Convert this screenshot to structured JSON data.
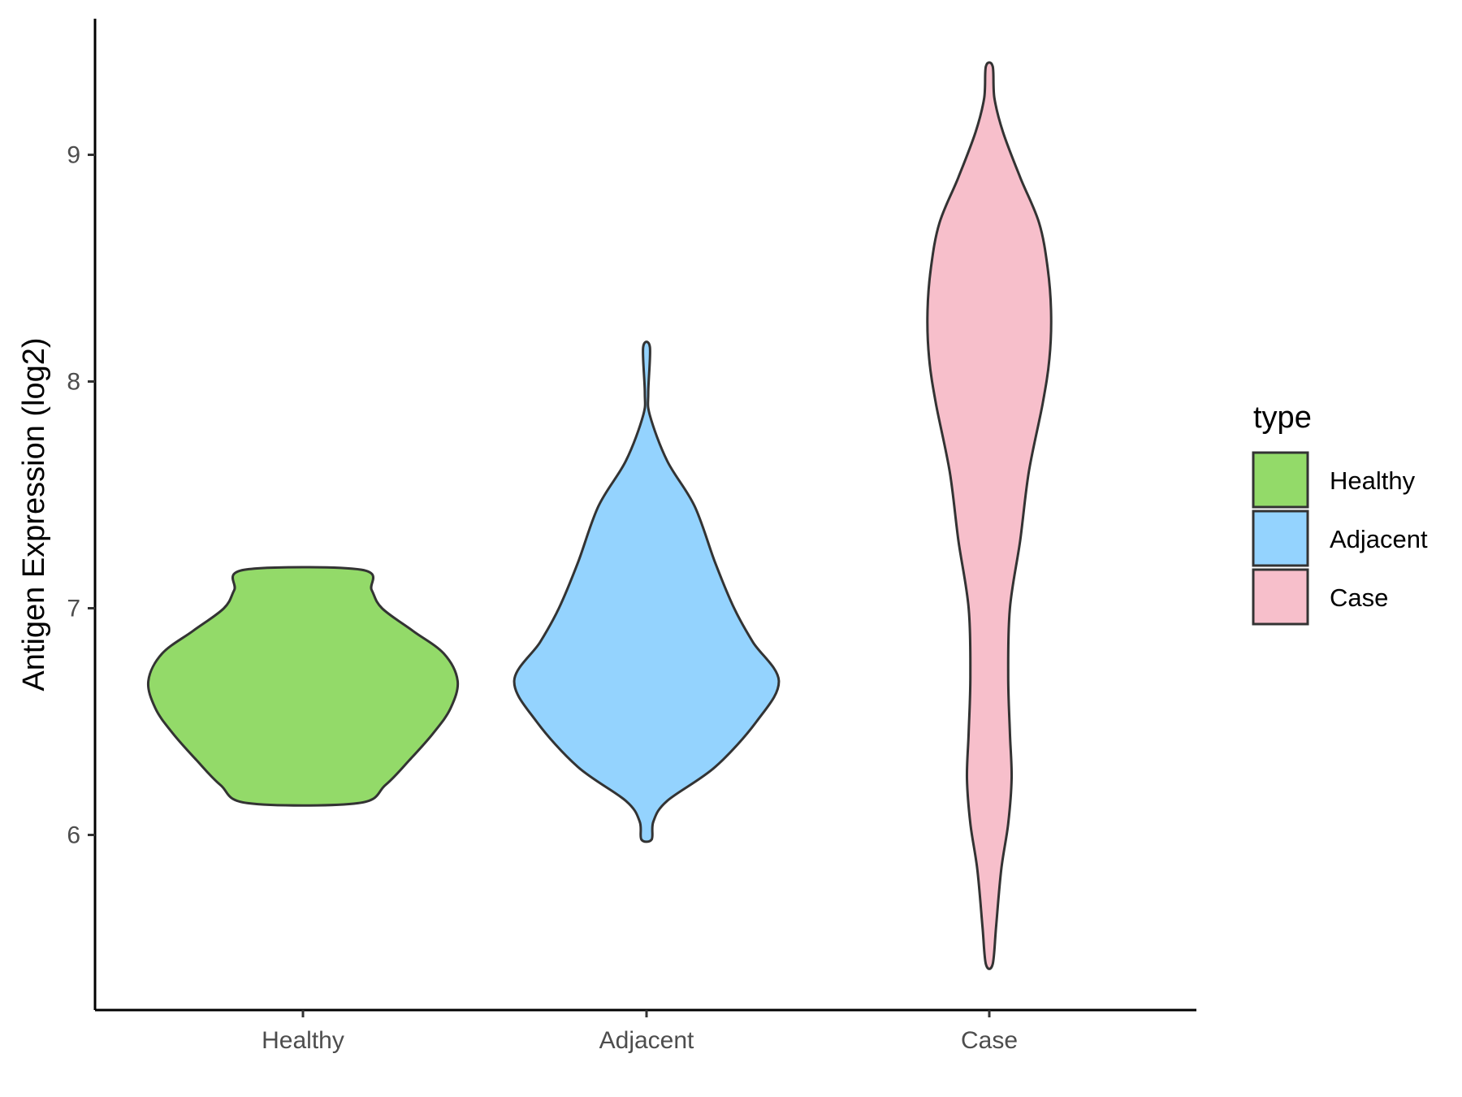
{
  "chart_data": {
    "type": "violin",
    "title": "",
    "xlabel": "",
    "ylabel": "Antigen Expression (log2)",
    "categories": [
      "Healthy",
      "Adjacent",
      "Case"
    ],
    "ylim": [
      5.25,
      9.6
    ],
    "yticks": [
      6,
      7,
      8,
      9
    ],
    "grid": false,
    "legend": {
      "title": "type",
      "position": "right",
      "entries": [
        "Healthy",
        "Adjacent",
        "Case"
      ]
    },
    "colors": {
      "Healthy": "#93DA69",
      "Adjacent": "#94D3FE",
      "Case": "#F7BFCB"
    },
    "series": [
      {
        "category": "Healthy",
        "min": 6.14,
        "max": 7.17,
        "profile": [
          {
            "y": 6.14,
            "hw": 0.16
          },
          {
            "y": 6.22,
            "hw": 0.24
          },
          {
            "y": 6.33,
            "hw": 0.31
          },
          {
            "y": 6.45,
            "hw": 0.38
          },
          {
            "y": 6.56,
            "hw": 0.43
          },
          {
            "y": 6.68,
            "hw": 0.45
          },
          {
            "y": 6.8,
            "hw": 0.41
          },
          {
            "y": 6.9,
            "hw": 0.32
          },
          {
            "y": 7.0,
            "hw": 0.23
          },
          {
            "y": 7.08,
            "hw": 0.2
          },
          {
            "y": 7.17,
            "hw": 0.17
          }
        ]
      },
      {
        "category": "Adjacent",
        "min": 5.98,
        "max": 8.15,
        "profile": [
          {
            "y": 5.98,
            "hw": 0.015
          },
          {
            "y": 6.06,
            "hw": 0.02
          },
          {
            "y": 6.15,
            "hw": 0.06
          },
          {
            "y": 6.3,
            "hw": 0.2
          },
          {
            "y": 6.5,
            "hw": 0.32
          },
          {
            "y": 6.68,
            "hw": 0.385
          },
          {
            "y": 6.85,
            "hw": 0.31
          },
          {
            "y": 7.0,
            "hw": 0.255
          },
          {
            "y": 7.2,
            "hw": 0.2
          },
          {
            "y": 7.45,
            "hw": 0.14
          },
          {
            "y": 7.65,
            "hw": 0.06
          },
          {
            "y": 7.85,
            "hw": 0.01
          },
          {
            "y": 7.95,
            "hw": 0.005
          },
          {
            "y": 8.15,
            "hw": 0.01
          }
        ]
      },
      {
        "category": "Case",
        "min": 5.43,
        "max": 9.39,
        "profile": [
          {
            "y": 5.43,
            "hw": 0.01
          },
          {
            "y": 5.6,
            "hw": 0.02
          },
          {
            "y": 5.85,
            "hw": 0.035
          },
          {
            "y": 6.05,
            "hw": 0.055
          },
          {
            "y": 6.25,
            "hw": 0.065
          },
          {
            "y": 6.45,
            "hw": 0.06
          },
          {
            "y": 6.7,
            "hw": 0.055
          },
          {
            "y": 7.0,
            "hw": 0.06
          },
          {
            "y": 7.3,
            "hw": 0.09
          },
          {
            "y": 7.6,
            "hw": 0.115
          },
          {
            "y": 7.9,
            "hw": 0.155
          },
          {
            "y": 8.1,
            "hw": 0.175
          },
          {
            "y": 8.3,
            "hw": 0.18
          },
          {
            "y": 8.5,
            "hw": 0.17
          },
          {
            "y": 8.7,
            "hw": 0.145
          },
          {
            "y": 8.9,
            "hw": 0.09
          },
          {
            "y": 9.1,
            "hw": 0.04
          },
          {
            "y": 9.25,
            "hw": 0.015
          },
          {
            "y": 9.39,
            "hw": 0.01
          }
        ]
      }
    ]
  }
}
